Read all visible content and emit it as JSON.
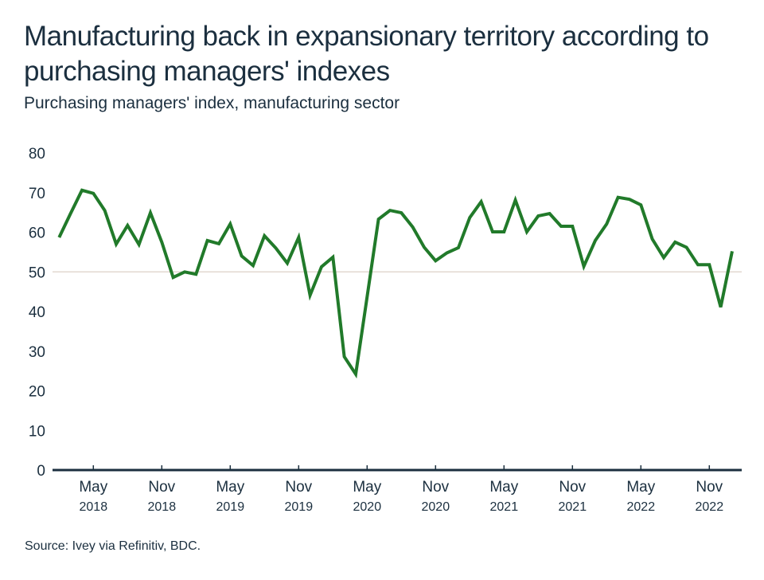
{
  "chart_data": {
    "type": "line",
    "title": "Manufacturing back in expansionary territory according to purchasing managers' indexes",
    "subtitle": "Purchasing managers' index, manufacturing sector",
    "source": "Source: Ivey via Refinitiv, BDC.",
    "xlabel": "",
    "ylabel": "",
    "ylim": [
      0,
      80
    ],
    "yticks": [
      0,
      10,
      20,
      30,
      40,
      50,
      60,
      70,
      80
    ],
    "reference_line": 50,
    "grid": false,
    "x_start": "2018-02",
    "x_end": "2023-01",
    "xticks": [
      {
        "month": "May",
        "year": "2018",
        "date": "2018-05"
      },
      {
        "month": "Nov",
        "year": "2018",
        "date": "2018-11"
      },
      {
        "month": "May",
        "year": "2019",
        "date": "2019-05"
      },
      {
        "month": "Nov",
        "year": "2019",
        "date": "2019-11"
      },
      {
        "month": "May",
        "year": "2020",
        "date": "2020-05"
      },
      {
        "month": "Nov",
        "year": "2020",
        "date": "2020-11"
      },
      {
        "month": "May",
        "year": "2021",
        "date": "2021-05"
      },
      {
        "month": "Nov",
        "year": "2021",
        "date": "2021-11"
      },
      {
        "month": "May",
        "year": "2022",
        "date": "2022-05"
      },
      {
        "month": "Nov",
        "year": "2022",
        "date": "2022-11"
      }
    ],
    "series": [
      {
        "name": "Purchasing managers' index, manufacturing sector",
        "color": "#217a2a",
        "x": [
          "2018-02",
          "2018-03",
          "2018-04",
          "2018-05",
          "2018-06",
          "2018-07",
          "2018-08",
          "2018-09",
          "2018-10",
          "2018-11",
          "2018-12",
          "2019-01",
          "2019-02",
          "2019-03",
          "2019-04",
          "2019-05",
          "2019-06",
          "2019-07",
          "2019-08",
          "2019-09",
          "2019-10",
          "2019-11",
          "2019-12",
          "2020-01",
          "2020-02",
          "2020-03",
          "2020-04",
          "2020-05",
          "2020-06",
          "2020-07",
          "2020-08",
          "2020-09",
          "2020-10",
          "2020-11",
          "2020-12",
          "2021-01",
          "2021-02",
          "2021-03",
          "2021-04",
          "2021-05",
          "2021-06",
          "2021-07",
          "2021-08",
          "2021-09",
          "2021-10",
          "2021-11",
          "2021-12",
          "2022-01",
          "2022-02",
          "2022-03",
          "2022-04",
          "2022-05",
          "2022-06",
          "2022-07",
          "2022-08",
          "2022-09",
          "2022-10",
          "2022-11",
          "2022-12",
          "2023-01"
        ],
        "values": [
          58.7,
          64.7,
          70.6,
          69.8,
          65.5,
          57.0,
          61.7,
          56.9,
          64.9,
          57.5,
          48.6,
          50.0,
          49.4,
          57.9,
          57.1,
          62.1,
          54.0,
          51.6,
          59.1,
          56.0,
          52.2,
          58.7,
          44.1,
          51.3,
          53.7,
          28.6,
          24.2,
          43.7,
          63.3,
          65.5,
          64.9,
          61.3,
          56.2,
          52.8,
          54.8,
          56.1,
          63.7,
          67.7,
          60.1,
          60.1,
          68.1,
          60.1,
          64.1,
          64.7,
          61.5,
          61.5,
          51.4,
          57.9,
          62.1,
          68.8,
          68.3,
          66.9,
          58.3,
          53.6,
          57.5,
          56.2,
          51.8,
          51.8,
          41.1,
          55.2
        ]
      }
    ]
  },
  "colors": {
    "text": "#1b2f3f",
    "line": "#217a2a",
    "axis": "#1b2f3f",
    "reference": "#e2d8d0"
  }
}
